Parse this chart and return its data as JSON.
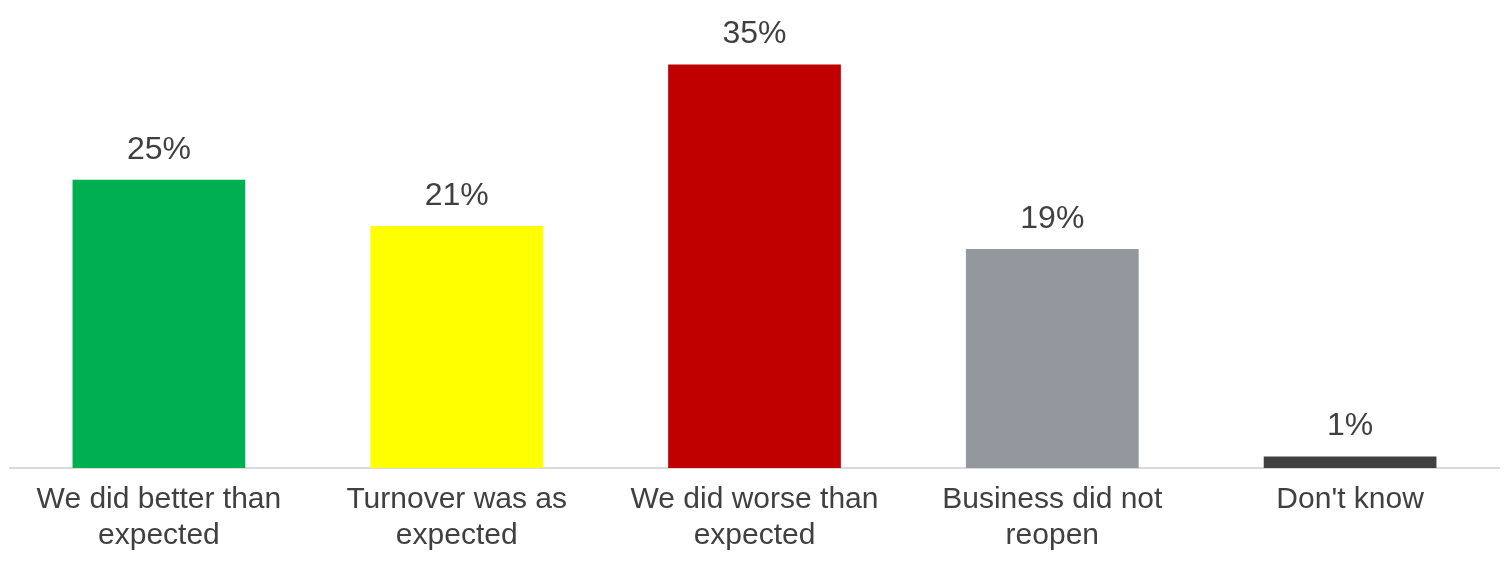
{
  "chart_data": {
    "type": "bar",
    "categories": [
      "We did better than expected",
      "Turnover was as expected",
      "We did worse than expected",
      "Business did not reopen",
      "Don't know"
    ],
    "values": [
      25,
      21,
      35,
      19,
      1
    ],
    "colors": [
      "#00b050",
      "#ffff00",
      "#c00000",
      "#93979e",
      "#404040"
    ],
    "value_labels": [
      "25%",
      "21%",
      "35%",
      "19%",
      "1%"
    ],
    "grid": false,
    "legend": false
  }
}
